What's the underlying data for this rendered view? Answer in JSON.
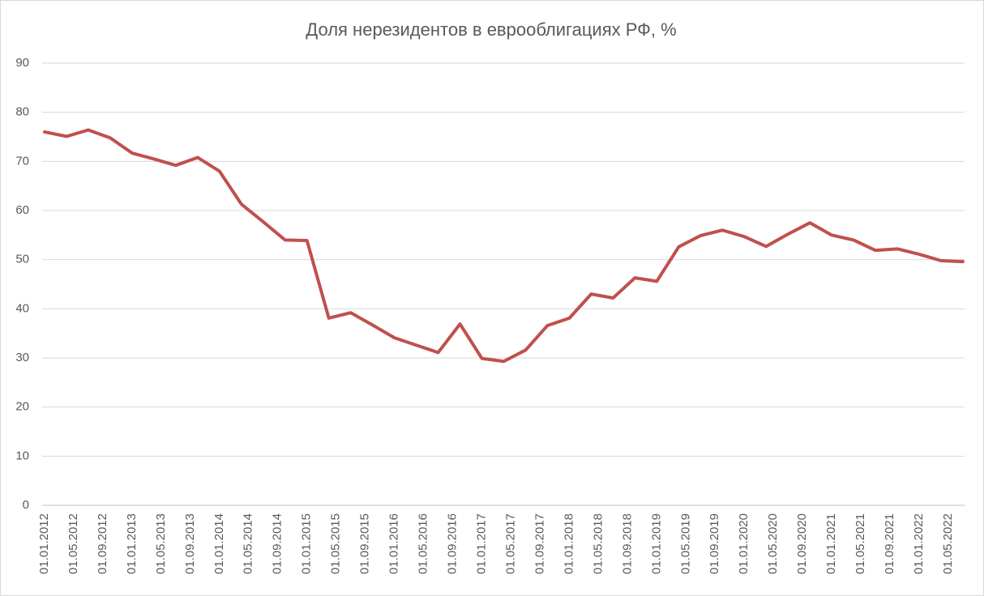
{
  "chart_data": {
    "type": "line",
    "title": "Доля нерезидентов в еврооблигациях РФ, %",
    "x": [
      "01.01.2012",
      "01.04.2012",
      "01.07.2012",
      "01.10.2012",
      "01.01.2013",
      "01.04.2013",
      "01.07.2013",
      "01.10.2013",
      "01.01.2014",
      "01.04.2014",
      "01.07.2014",
      "01.10.2014",
      "01.01.2015",
      "01.04.2015",
      "01.07.2015",
      "01.10.2015",
      "01.01.2016",
      "01.04.2016",
      "01.07.2016",
      "01.10.2016",
      "01.01.2017",
      "01.04.2017",
      "01.07.2017",
      "01.10.2017",
      "01.01.2018",
      "01.04.2018",
      "01.07.2018",
      "01.10.2018",
      "01.01.2019",
      "01.04.2019",
      "01.07.2019",
      "01.10.2019",
      "01.01.2020",
      "01.04.2020",
      "01.07.2020",
      "01.10.2020",
      "01.01.2021",
      "01.04.2021",
      "01.07.2021",
      "01.10.2021",
      "01.01.2022",
      "01.04.2022",
      "01.07.2022"
    ],
    "series": [
      {
        "name": "Доля нерезидентов",
        "color": "#c0504d",
        "values": [
          76.0,
          75.1,
          76.4,
          74.8,
          71.7,
          70.5,
          69.2,
          70.8,
          68.0,
          61.3,
          57.7,
          54.0,
          53.9,
          38.1,
          39.2,
          36.7,
          34.1,
          32.6,
          31.1,
          36.9,
          29.9,
          29.3,
          31.6,
          36.6,
          38.1,
          43.0,
          42.2,
          46.3,
          45.6,
          52.6,
          54.9,
          56.0,
          54.7,
          52.7,
          55.2,
          57.5,
          55.0,
          54.0,
          51.9,
          52.2,
          51.1,
          49.8,
          49.6
        ]
      }
    ],
    "xlim": [
      "01.01.2012",
      "01.07.2022"
    ],
    "xticks": [
      "01.01.2012",
      "01.05.2012",
      "01.09.2012",
      "01.01.2013",
      "01.05.2013",
      "01.09.2013",
      "01.01.2014",
      "01.05.2014",
      "01.09.2014",
      "01.01.2015",
      "01.05.2015",
      "01.09.2015",
      "01.01.2016",
      "01.05.2016",
      "01.09.2016",
      "01.01.2017",
      "01.05.2017",
      "01.09.2017",
      "01.01.2018",
      "01.05.2018",
      "01.09.2018",
      "01.01.2019",
      "01.05.2019",
      "01.09.2019",
      "01.01.2020",
      "01.05.2020",
      "01.09.2020",
      "01.01.2021",
      "01.05.2021",
      "01.09.2021",
      "01.01.2022",
      "01.05.2022"
    ],
    "ylim": [
      0,
      90
    ],
    "yticks": [
      0,
      10,
      20,
      30,
      40,
      50,
      60,
      70,
      80,
      90
    ],
    "grid": true
  }
}
